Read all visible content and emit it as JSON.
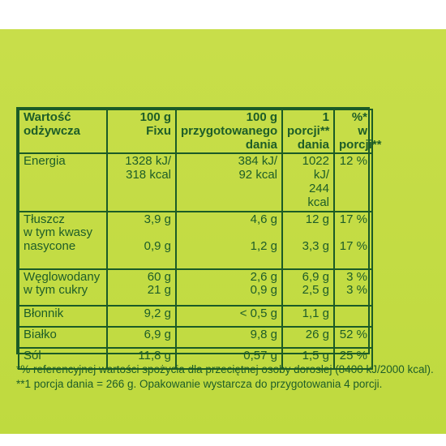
{
  "nutrition_table": {
    "headers": [
      "Wartość\nodżywcza",
      "100 g\nFixu",
      "100 g\nprzygotowanego\ndania",
      "1\nporcji**\ndania",
      "%*\nw\nporcji**"
    ],
    "rows": [
      {
        "label": "Energia",
        "fix_100g": "1328 kJ/\n318 kcal",
        "prepared_100g": "384 kJ/\n92 kcal",
        "portion": "1022 kJ/\n244 kcal",
        "percent": "12 %"
      },
      {
        "label": "Tłuszcz\n    w tym kwasy\n    nasycone",
        "fix_100g": "3,9 g\n\n0,9 g",
        "prepared_100g": "4,6 g\n\n1,2 g",
        "portion": "12 g\n\n3,3 g",
        "percent": "17 %\n\n17 %"
      },
      {
        "label": "Węglowodany\n    w tym cukry",
        "fix_100g": "60 g\n21 g",
        "prepared_100g": "2,6 g\n0,9 g",
        "portion": "6,9 g\n2,5 g",
        "percent": "3 %\n3 %"
      },
      {
        "label": "Błonnik",
        "fix_100g": "9,2 g",
        "prepared_100g": "< 0,5 g",
        "portion": "1,1 g",
        "percent": ""
      },
      {
        "label": "Białko",
        "fix_100g": "6,9 g",
        "prepared_100g": "9,8 g",
        "portion": "26 g",
        "percent": "52 %"
      },
      {
        "label": "Sól",
        "fix_100g": "11,8 g",
        "prepared_100g": "0,57 g",
        "portion": "1,5 g",
        "percent": "25 %"
      }
    ]
  },
  "footnotes": [
    "*% referencyjnej wartości spożycia dla przeciętnej osoby dorosłej (8400 kJ/2000 kcal).",
    "**1 porcja dania = 266 g. Opakowanie wystarcza do przygotowania 4 porcji."
  ],
  "colors": {
    "background": "#c6dd49",
    "text": "#1d5d28",
    "lines": "#1b5b27"
  }
}
